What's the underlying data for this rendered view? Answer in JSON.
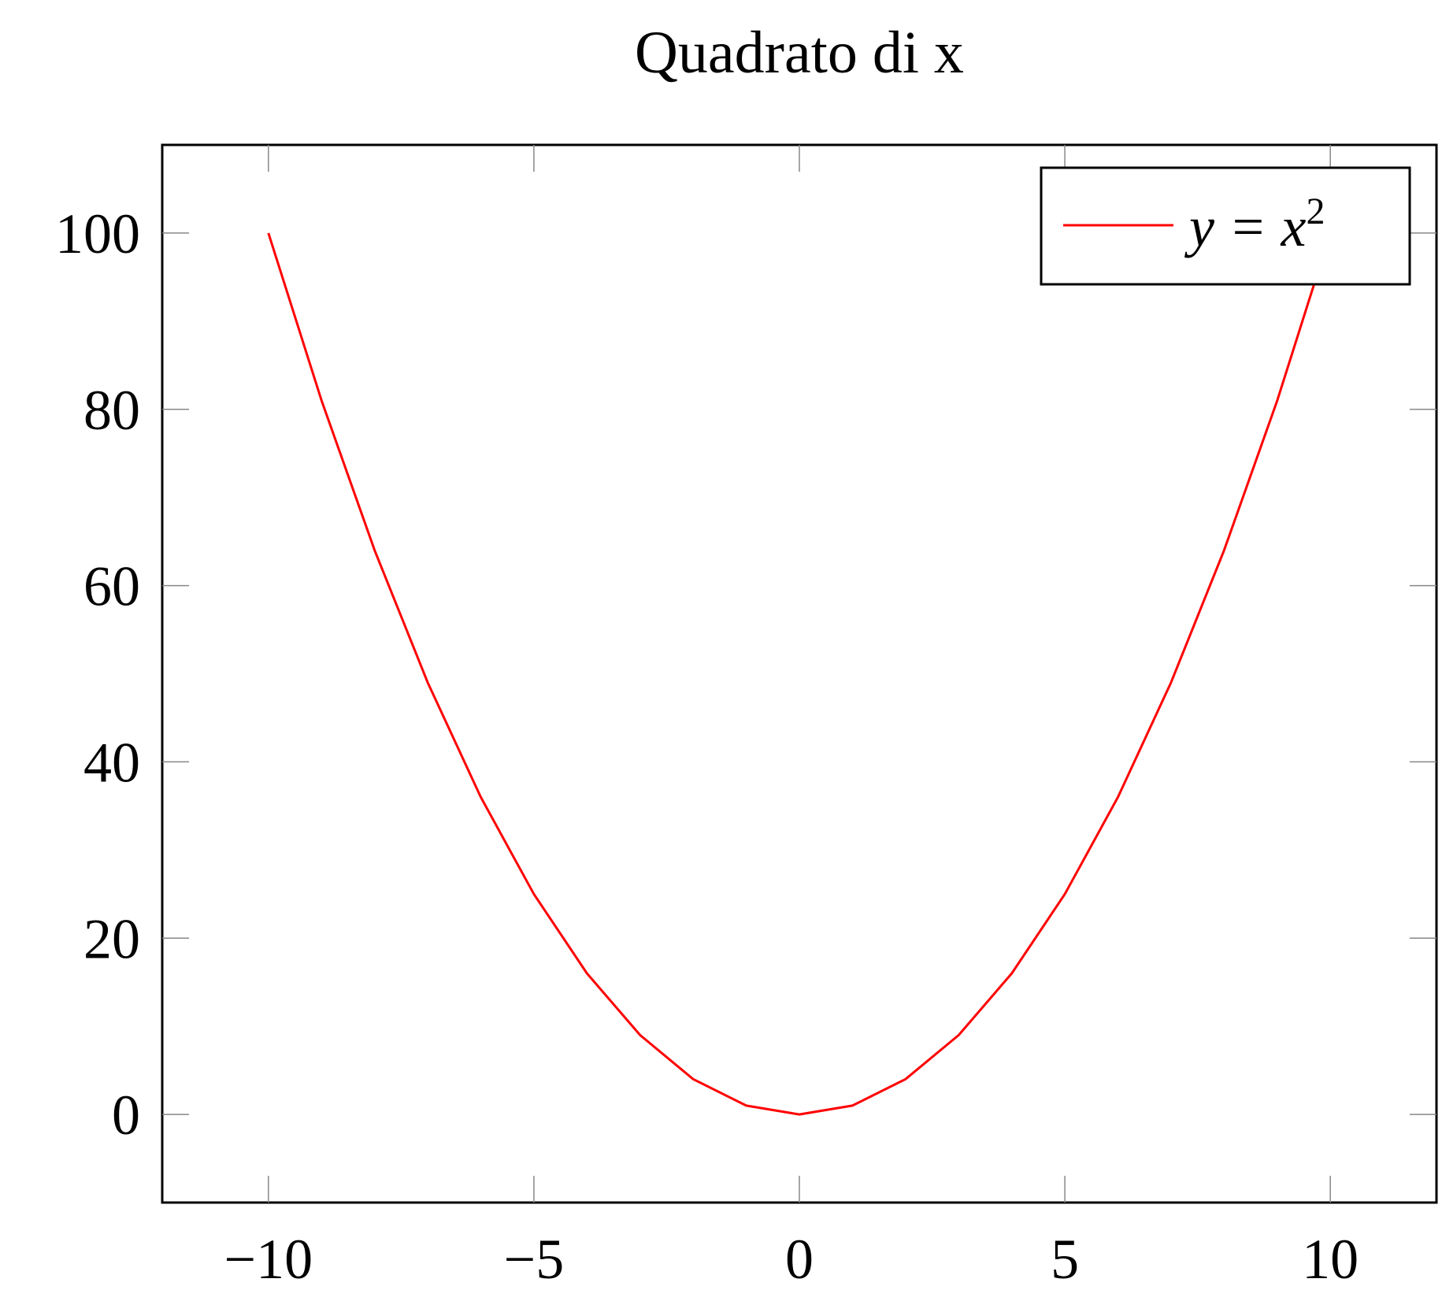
{
  "chart_data": {
    "type": "line",
    "title": "Quadrato di x",
    "xlabel": "",
    "ylabel": "",
    "xlim": [
      -12,
      12
    ],
    "ylim": [
      -10,
      110
    ],
    "x_ticks": [
      -10,
      -5,
      0,
      5,
      10
    ],
    "x_tick_labels": [
      "−10",
      "−5",
      "0",
      "5",
      "10"
    ],
    "y_ticks": [
      0,
      20,
      40,
      60,
      80,
      100
    ],
    "y_tick_labels": [
      "0",
      "20",
      "40",
      "60",
      "80",
      "100"
    ],
    "grid": false,
    "legend_position": "top-right",
    "series": [
      {
        "name": "y = x²",
        "color": "#ff0000",
        "x": [
          -10,
          -9,
          -8,
          -7,
          -6,
          -5,
          -4,
          -3,
          -2,
          -1,
          0,
          1,
          2,
          3,
          4,
          5,
          6,
          7,
          8,
          9,
          10
        ],
        "y": [
          100,
          81,
          64,
          49,
          36,
          25,
          16,
          9,
          4,
          1,
          0,
          1,
          4,
          9,
          16,
          25,
          36,
          49,
          64,
          81,
          100
        ]
      }
    ]
  },
  "legend": {
    "text_main": "y = x",
    "text_sup": "2"
  }
}
